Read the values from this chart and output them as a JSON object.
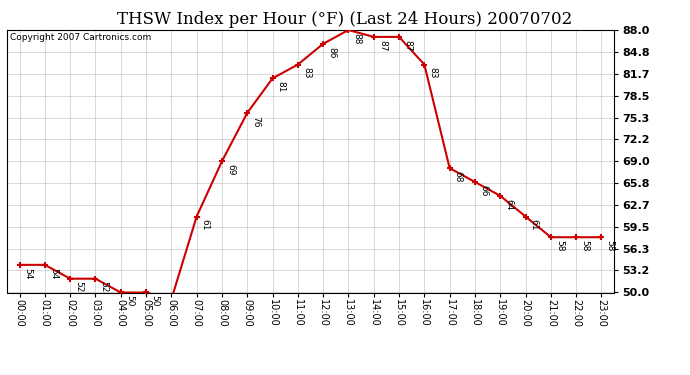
{
  "title": "THSW Index per Hour (°F) (Last 24 Hours) 20070702",
  "copyright": "Copyright 2007 Cartronics.com",
  "hours": [
    0,
    1,
    2,
    3,
    4,
    5,
    6,
    7,
    8,
    9,
    10,
    11,
    12,
    13,
    14,
    15,
    16,
    17,
    18,
    19,
    20,
    21,
    22,
    23
  ],
  "values": [
    54,
    54,
    52,
    52,
    50,
    50,
    49,
    61,
    69,
    76,
    81,
    83,
    86,
    88,
    87,
    87,
    83,
    68,
    66,
    64,
    61,
    58,
    58,
    58
  ],
  "x_labels": [
    "00:00",
    "01:00",
    "02:00",
    "03:00",
    "04:00",
    "05:00",
    "06:00",
    "07:00",
    "08:00",
    "09:00",
    "10:00",
    "11:00",
    "12:00",
    "13:00",
    "14:00",
    "15:00",
    "16:00",
    "17:00",
    "18:00",
    "19:00",
    "20:00",
    "21:00",
    "22:00",
    "23:00"
  ],
  "y_ticks": [
    50.0,
    53.2,
    56.3,
    59.5,
    62.7,
    65.8,
    69.0,
    72.2,
    75.3,
    78.5,
    81.7,
    84.8,
    88.0
  ],
  "ylim": [
    50.0,
    88.0
  ],
  "line_color": "#cc0000",
  "marker_color": "#cc0000",
  "bg_color": "#ffffff",
  "grid_color": "#bbbbbb",
  "title_fontsize": 12,
  "label_fontsize": 7.5
}
